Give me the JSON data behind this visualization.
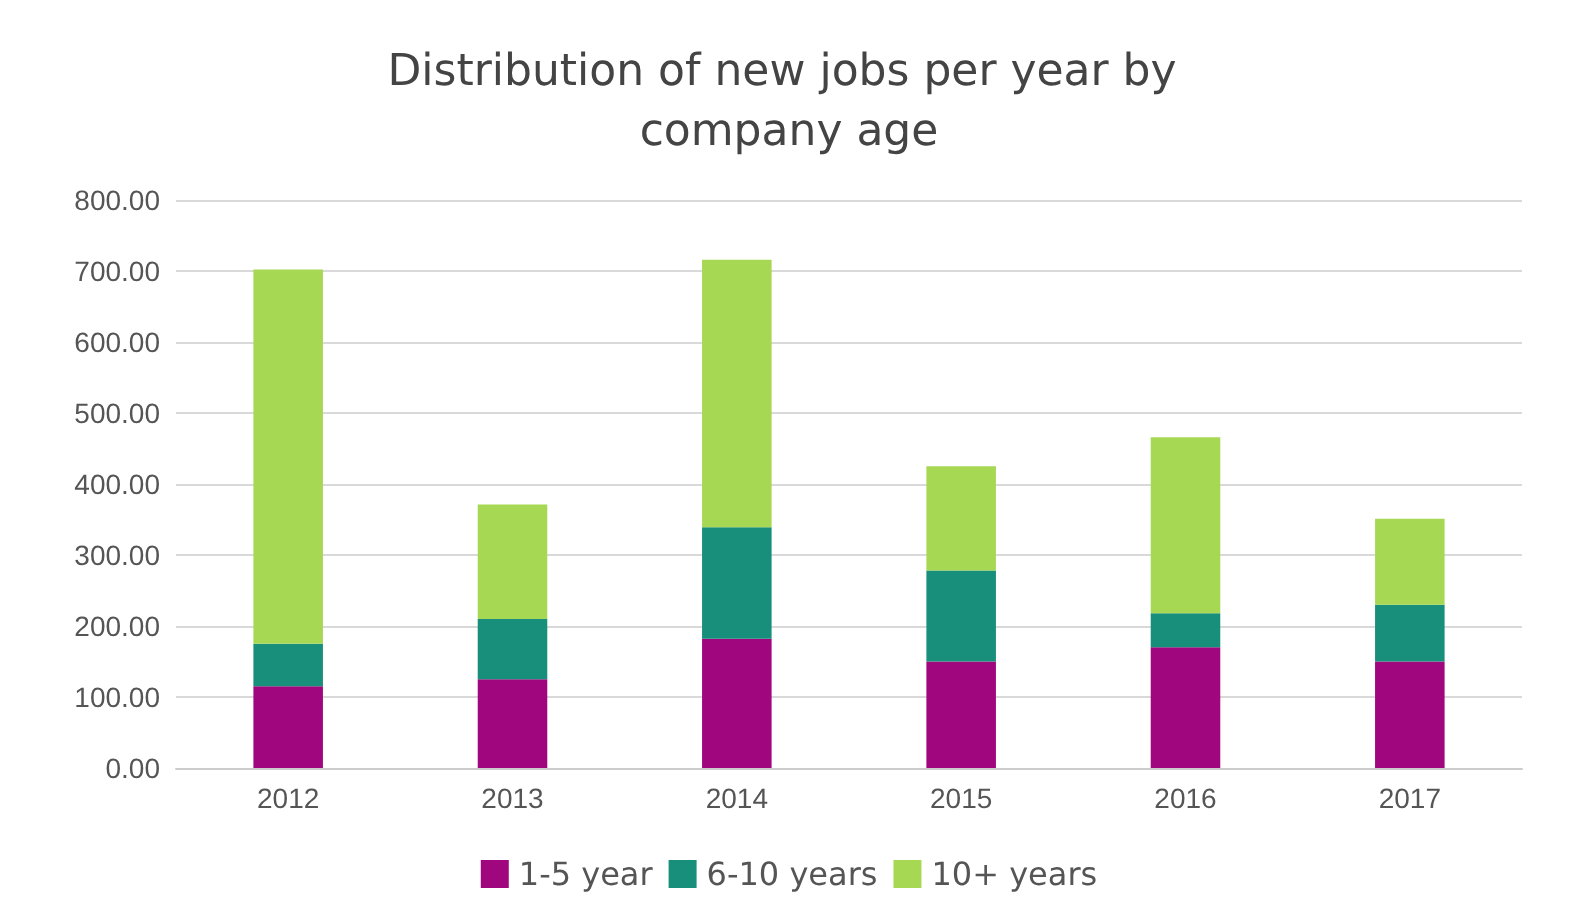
{
  "chart_data": {
    "type": "bar",
    "title": "Distribution of new jobs per year by company age",
    "stacked": true,
    "categories": [
      "2012",
      "2013",
      "2014",
      "2015",
      "2016",
      "2017"
    ],
    "series": [
      {
        "name": "1-5 year",
        "color": "#a0067e",
        "values": [
          115,
          125,
          182,
          150,
          170,
          150
        ]
      },
      {
        "name": "6-10 years",
        "color": "#178f7a",
        "values": [
          60,
          85,
          157,
          128,
          48,
          80
        ]
      },
      {
        "name": "10+ years",
        "color": "#a6d854",
        "values": [
          527,
          161,
          377,
          147,
          248,
          121
        ]
      }
    ],
    "ylim": [
      0,
      800
    ],
    "yticks": [
      {
        "value": 0,
        "label": "0.00"
      },
      {
        "value": 100,
        "label": "100.00"
      },
      {
        "value": 200,
        "label": "200.00"
      },
      {
        "value": 300,
        "label": "300.00"
      },
      {
        "value": 400,
        "label": "400.00"
      },
      {
        "value": 500,
        "label": "500.00"
      },
      {
        "value": 600,
        "label": "600.00"
      },
      {
        "value": 700,
        "label": "700.00"
      },
      {
        "value": 800,
        "label": "800.00"
      }
    ],
    "grid": "y",
    "legend": "bottom"
  }
}
